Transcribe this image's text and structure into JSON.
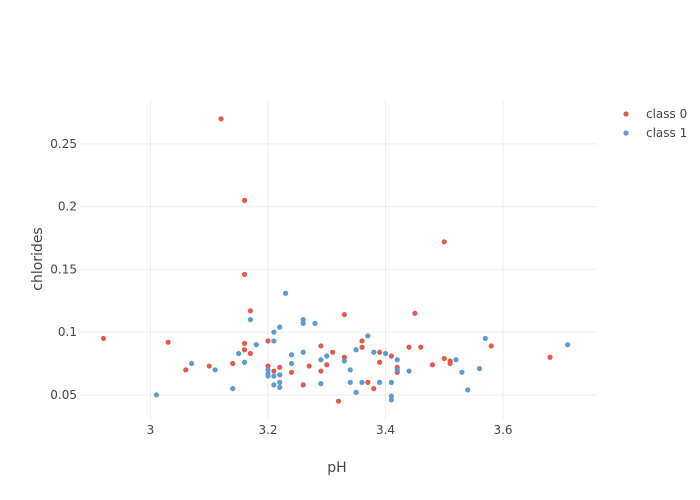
{
  "chart_data": {
    "type": "scatter",
    "title": "",
    "xlabel": "pH",
    "ylabel": "chlorides",
    "xlim": [
      2.88,
      3.76
    ],
    "ylim": [
      0.03,
      0.285
    ],
    "xticks": [
      3,
      3.2,
      3.4,
      3.6
    ],
    "xtick_labels": [
      "3",
      "3.2",
      "3.4",
      "3.6"
    ],
    "yticks": [
      0.05,
      0.1,
      0.15,
      0.2,
      0.25
    ],
    "ytick_labels": [
      "0.05",
      "0.1",
      "0.15",
      "0.2",
      "0.25"
    ],
    "grid": true,
    "legend_position": "top-right",
    "series": [
      {
        "name": "class 0",
        "color": "#e15a50",
        "points": [
          [
            2.92,
            0.095
          ],
          [
            3.03,
            0.092
          ],
          [
            3.06,
            0.07
          ],
          [
            3.1,
            0.073
          ],
          [
            3.12,
            0.27
          ],
          [
            3.14,
            0.075
          ],
          [
            3.16,
            0.205
          ],
          [
            3.16,
            0.146
          ],
          [
            3.16,
            0.091
          ],
          [
            3.16,
            0.086
          ],
          [
            3.17,
            0.117
          ],
          [
            3.17,
            0.083
          ],
          [
            3.2,
            0.093
          ],
          [
            3.2,
            0.073
          ],
          [
            3.21,
            0.069
          ],
          [
            3.22,
            0.072
          ],
          [
            3.24,
            0.068
          ],
          [
            3.26,
            0.058
          ],
          [
            3.27,
            0.073
          ],
          [
            3.29,
            0.089
          ],
          [
            3.29,
            0.069
          ],
          [
            3.3,
            0.074
          ],
          [
            3.31,
            0.084
          ],
          [
            3.32,
            0.045
          ],
          [
            3.33,
            0.114
          ],
          [
            3.33,
            0.08
          ],
          [
            3.36,
            0.093
          ],
          [
            3.36,
            0.088
          ],
          [
            3.37,
            0.06
          ],
          [
            3.38,
            0.055
          ],
          [
            3.39,
            0.084
          ],
          [
            3.39,
            0.076
          ],
          [
            3.41,
            0.081
          ],
          [
            3.42,
            0.072
          ],
          [
            3.42,
            0.068
          ],
          [
            3.44,
            0.088
          ],
          [
            3.45,
            0.115
          ],
          [
            3.46,
            0.088
          ],
          [
            3.48,
            0.074
          ],
          [
            3.5,
            0.172
          ],
          [
            3.5,
            0.079
          ],
          [
            3.51,
            0.077
          ],
          [
            3.51,
            0.075
          ],
          [
            3.58,
            0.089
          ],
          [
            3.68,
            0.08
          ]
        ]
      },
      {
        "name": "class 1",
        "color": "#5b9bd1",
        "points": [
          [
            3.01,
            0.05
          ],
          [
            3.07,
            0.075
          ],
          [
            3.11,
            0.07
          ],
          [
            3.14,
            0.055
          ],
          [
            3.15,
            0.083
          ],
          [
            3.16,
            0.076
          ],
          [
            3.17,
            0.11
          ],
          [
            3.18,
            0.09
          ],
          [
            3.2,
            0.07
          ],
          [
            3.2,
            0.067
          ],
          [
            3.2,
            0.065
          ],
          [
            3.21,
            0.1
          ],
          [
            3.21,
            0.093
          ],
          [
            3.21,
            0.065
          ],
          [
            3.21,
            0.058
          ],
          [
            3.22,
            0.104
          ],
          [
            3.22,
            0.066
          ],
          [
            3.22,
            0.06
          ],
          [
            3.22,
            0.056
          ],
          [
            3.23,
            0.131
          ],
          [
            3.24,
            0.082
          ],
          [
            3.24,
            0.075
          ],
          [
            3.26,
            0.11
          ],
          [
            3.26,
            0.107
          ],
          [
            3.26,
            0.084
          ],
          [
            3.28,
            0.107
          ],
          [
            3.29,
            0.078
          ],
          [
            3.29,
            0.059
          ],
          [
            3.3,
            0.081
          ],
          [
            3.33,
            0.077
          ],
          [
            3.34,
            0.07
          ],
          [
            3.34,
            0.06
          ],
          [
            3.35,
            0.086
          ],
          [
            3.35,
            0.052
          ],
          [
            3.36,
            0.06
          ],
          [
            3.37,
            0.097
          ],
          [
            3.38,
            0.084
          ],
          [
            3.39,
            0.06
          ],
          [
            3.4,
            0.083
          ],
          [
            3.41,
            0.06
          ],
          [
            3.41,
            0.049
          ],
          [
            3.41,
            0.046
          ],
          [
            3.42,
            0.078
          ],
          [
            3.42,
            0.07
          ],
          [
            3.44,
            0.069
          ],
          [
            3.52,
            0.078
          ],
          [
            3.53,
            0.068
          ],
          [
            3.54,
            0.054
          ],
          [
            3.56,
            0.071
          ],
          [
            3.57,
            0.095
          ],
          [
            3.71,
            0.09
          ]
        ]
      }
    ]
  }
}
